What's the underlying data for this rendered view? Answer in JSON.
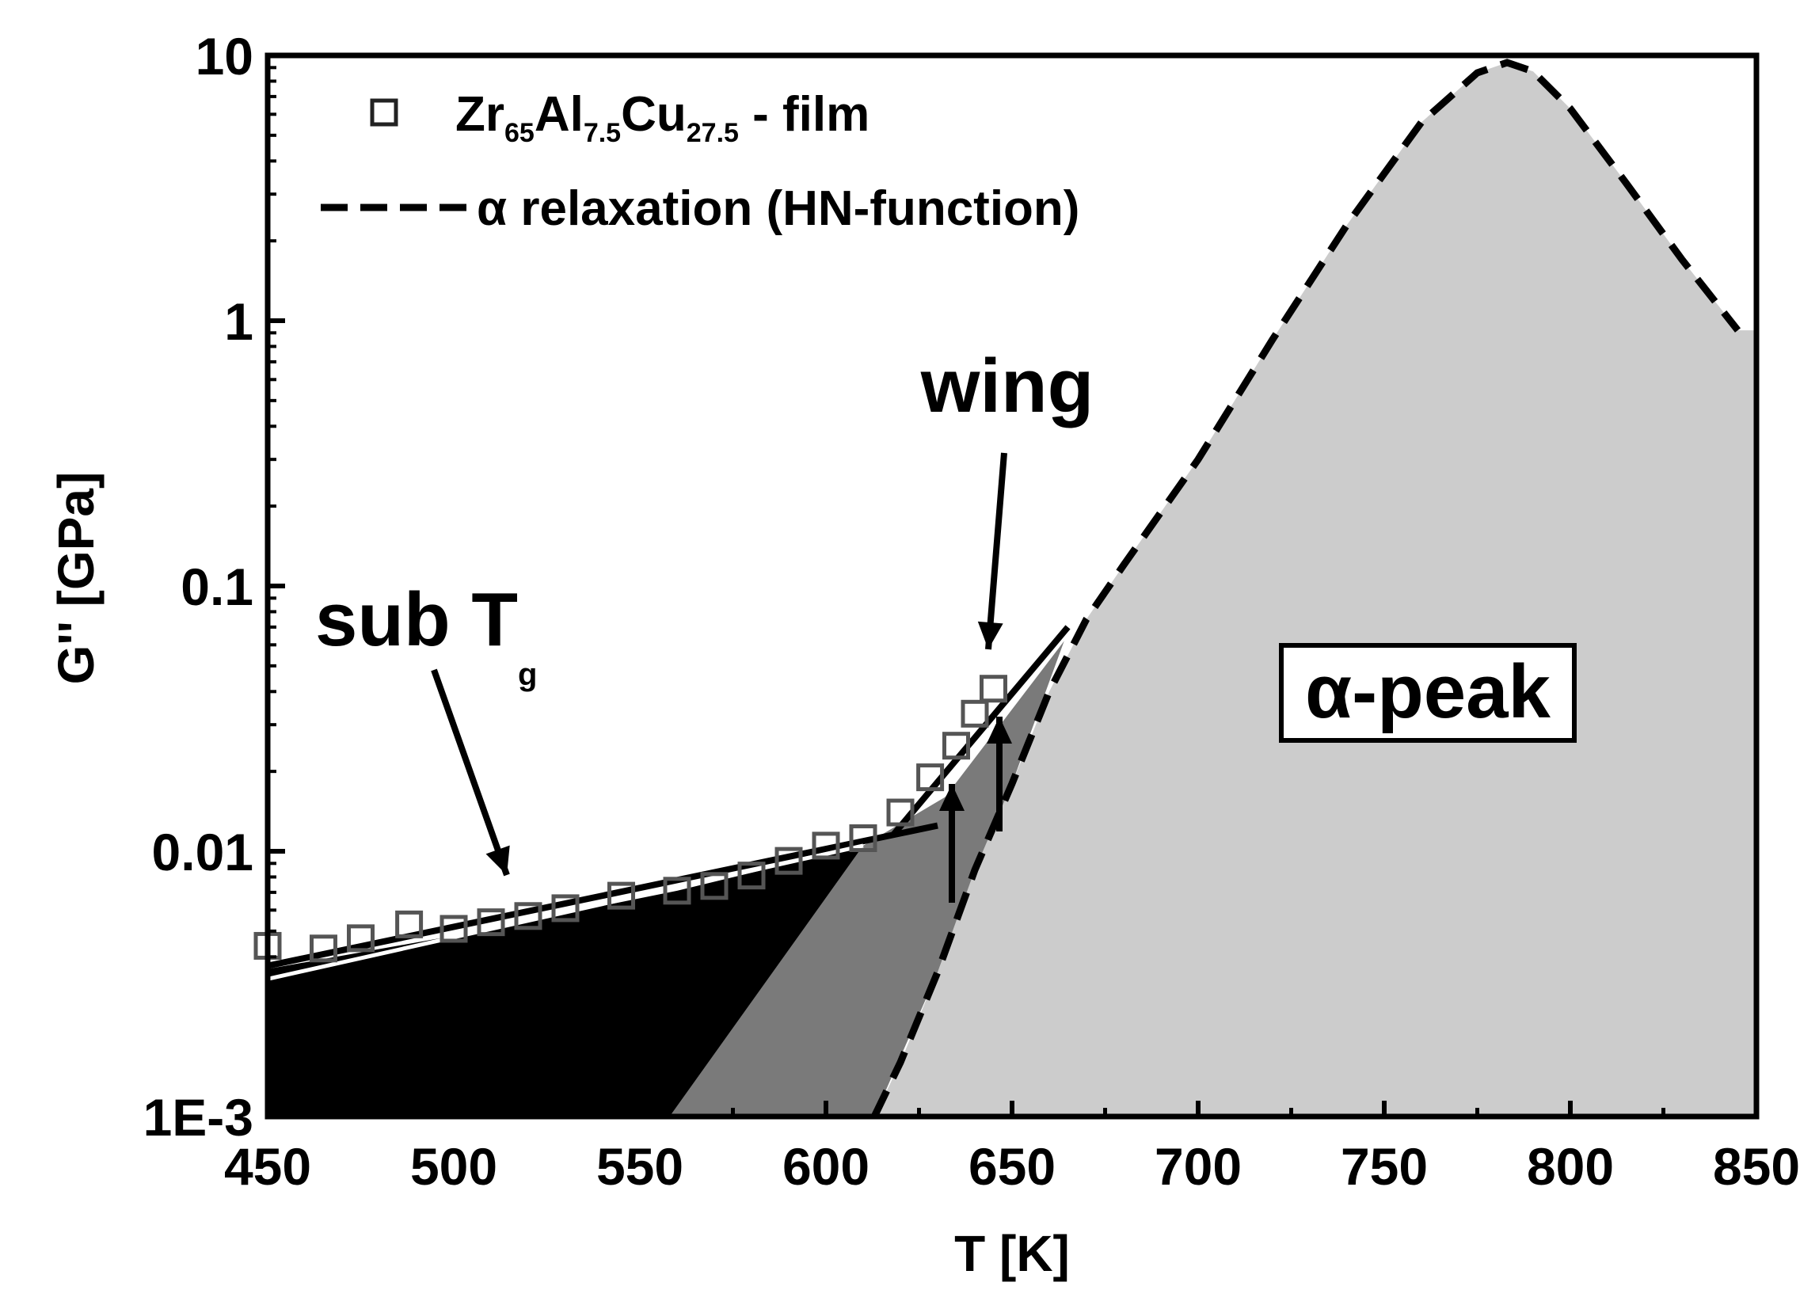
{
  "chart_data": {
    "type": "area",
    "xlabel": "T [K]",
    "ylabel": "G'' [GPa]",
    "xlim": [
      450,
      850
    ],
    "ylim": [
      0.001,
      10
    ],
    "yscale": "log",
    "x_ticks": [
      450,
      500,
      550,
      600,
      650,
      700,
      750,
      800,
      850
    ],
    "x_tick_labels": [
      "450",
      "500",
      "550",
      "600",
      "650",
      "700",
      "750",
      "800",
      "850"
    ],
    "y_ticks": [
      0.001,
      0.01,
      0.1,
      1,
      10
    ],
    "y_tick_labels": [
      "1E-3",
      "0.01",
      "0.1",
      "1",
      "10"
    ],
    "grid": false,
    "legend": {
      "position": "top-left",
      "markers": {
        "formula_parts": [
          {
            "text": "Zr",
            "sub": false
          },
          {
            "text": "65",
            "sub": true
          },
          {
            "text": "Al",
            "sub": false
          },
          {
            "text": "7.5",
            "sub": true
          },
          {
            "text": "Cu",
            "sub": false
          },
          {
            "text": "27.5",
            "sub": true
          },
          {
            "text": " - film",
            "sub": false
          }
        ]
      },
      "dashed": "α relaxation (HN-function)"
    },
    "series": [
      {
        "name": "Zr65Al7.5Cu27.5 - film",
        "style": "open-square-markers",
        "x": [
          450,
          465,
          475,
          488,
          500,
          510,
          520,
          530,
          545,
          560,
          570,
          580,
          590,
          600,
          610,
          620,
          628,
          635,
          640,
          645
        ],
        "y": [
          0.0044,
          0.0043,
          0.0047,
          0.0053,
          0.0051,
          0.0054,
          0.0057,
          0.0061,
          0.0068,
          0.0071,
          0.0074,
          0.0081,
          0.0092,
          0.0105,
          0.0112,
          0.014,
          0.019,
          0.025,
          0.033,
          0.041
        ]
      },
      {
        "name": "α relaxation (HN-function)",
        "style": "dashed-line",
        "x": [
          613,
          620,
          630,
          640,
          650,
          660,
          670,
          680,
          700,
          720,
          740,
          760,
          775,
          783,
          790,
          800,
          815,
          830,
          845
        ],
        "y": [
          0.001,
          0.0016,
          0.0035,
          0.0085,
          0.018,
          0.04,
          0.075,
          0.12,
          0.3,
          0.85,
          2.3,
          5.6,
          8.6,
          9.4,
          8.7,
          6.3,
          3.3,
          1.7,
          0.92
        ]
      }
    ],
    "fills": [
      {
        "name": "sub-Tg region",
        "color": "#000000"
      },
      {
        "name": "wing region",
        "color": "#7a7a7a"
      },
      {
        "name": "alpha peak region",
        "color": "#cccccc"
      }
    ],
    "annotations": {
      "sub_tg": "sub T",
      "sub_tg_subscript": "g",
      "wing": "wing",
      "alpha_peak": "α-peak"
    }
  }
}
